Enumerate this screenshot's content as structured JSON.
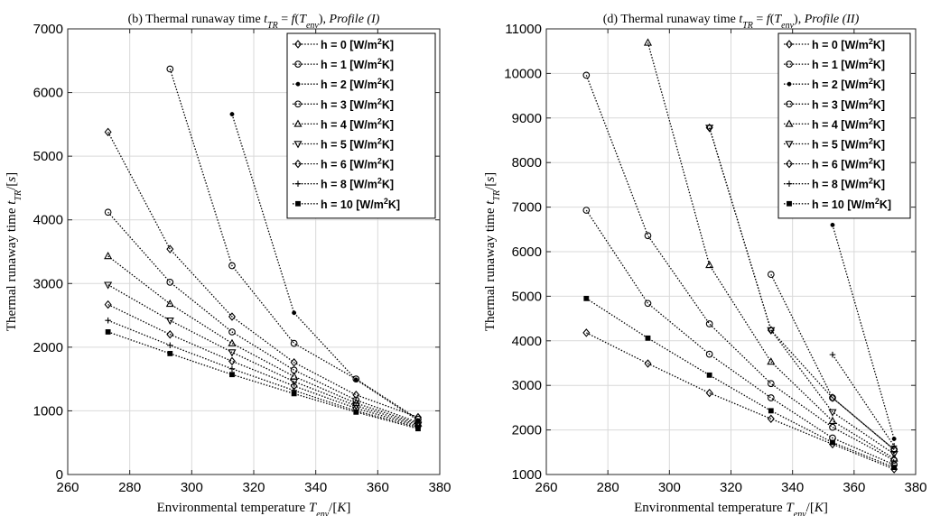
{
  "chart_data": [
    {
      "type": "line",
      "title": "(b) Thermal runaway time t_TR = f(T_env), Profile (I)",
      "xlabel": "Environmental temperature T_env/[K]",
      "ylabel": "Thermal runaway time t_TR/[s]",
      "xlim": [
        260,
        380
      ],
      "ylim": [
        0,
        7000
      ],
      "xticks": [
        260,
        280,
        300,
        320,
        340,
        360,
        380
      ],
      "yticks": [
        0,
        1000,
        2000,
        3000,
        4000,
        5000,
        6000,
        7000
      ],
      "grid": true,
      "legend_position": "top-right",
      "series": [
        {
          "name": "h = 0 [W/m^2K]",
          "marker": "diamond",
          "x": [
            273,
            293,
            313,
            333,
            353,
            373
          ],
          "y": [
            5380,
            3540,
            2480,
            1760,
            1250,
            900
          ]
        },
        {
          "name": "h = 1 [W/m^2K]",
          "marker": "circle",
          "x": [
            293,
            313,
            333,
            353,
            373
          ],
          "y": [
            6370,
            3280,
            2060,
            1500,
            870
          ]
        },
        {
          "name": "h = 2 [W/m^2K]",
          "marker": "dot",
          "x": [
            313,
            333,
            353,
            373
          ],
          "y": [
            5660,
            2540,
            1490,
            850
          ]
        },
        {
          "name": "h = 3 [W/m^2K]",
          "marker": "circle",
          "x": [
            273,
            293,
            313,
            333,
            353,
            373
          ],
          "y": [
            4120,
            3020,
            2240,
            1640,
            1170,
            820
          ]
        },
        {
          "name": "h = 4 [W/m^2K]",
          "marker": "triangle-up",
          "x": [
            273,
            293,
            313,
            333,
            353,
            373
          ],
          "y": [
            3430,
            2680,
            2060,
            1540,
            1120,
            800
          ]
        },
        {
          "name": "h = 5 [W/m^2K]",
          "marker": "triangle-down",
          "x": [
            273,
            293,
            313,
            333,
            353,
            373
          ],
          "y": [
            2980,
            2420,
            1920,
            1460,
            1080,
            780
          ]
        },
        {
          "name": "h = 6 [W/m^2K]",
          "marker": "diamond",
          "x": [
            273,
            293,
            313,
            333,
            353,
            373
          ],
          "y": [
            2670,
            2200,
            1780,
            1390,
            1040,
            760
          ]
        },
        {
          "name": "h = 8 [W/m^2K]",
          "marker": "plus",
          "x": [
            273,
            293,
            313,
            333,
            353,
            373
          ],
          "y": [
            2420,
            2030,
            1660,
            1320,
            1000,
            740
          ]
        },
        {
          "name": "h = 10 [W/m^2K]",
          "marker": "square",
          "x": [
            273,
            293,
            313,
            333,
            353,
            373
          ],
          "y": [
            2240,
            1900,
            1570,
            1270,
            980,
            720
          ]
        }
      ]
    },
    {
      "type": "line",
      "title": "(d) Thermal runaway time t_TR = f(T_env), Profile (II)",
      "xlabel": "Environmental temperature T_env/[K]",
      "ylabel": "Thermal runaway time t_TR/[s]",
      "xlim": [
        260,
        380
      ],
      "ylim": [
        1000,
        11000
      ],
      "xticks": [
        260,
        280,
        300,
        320,
        340,
        360,
        380
      ],
      "yticks": [
        1000,
        2000,
        3000,
        4000,
        5000,
        6000,
        7000,
        8000,
        9000,
        10000,
        11000
      ],
      "grid": true,
      "legend_position": "top-right",
      "series": [
        {
          "name": "h = 0 [W/m^2K]",
          "marker": "diamond",
          "x": [
            313,
            333,
            353,
            373
          ],
          "y": [
            8780,
            4240,
            2720,
            1560
          ]
        },
        {
          "name": "h = 1 [W/m^2K]",
          "marker": "circle",
          "x": [
            333,
            353,
            373
          ],
          "y": [
            5490,
            2720,
            1560
          ]
        },
        {
          "name": "h = 2 [W/m^2K]",
          "marker": "dot",
          "x": [
            353,
            373
          ],
          "y": [
            6600,
            1800
          ]
        },
        {
          "name": "h = 3 [W/m^2K]",
          "marker": "circle",
          "x": [
            273,
            293,
            313,
            333,
            353,
            373
          ],
          "y": [
            9960,
            6360,
            4380,
            3040,
            2060,
            1320
          ]
        },
        {
          "name": "h = 4 [W/m^2K]",
          "marker": "triangle-up",
          "x": [
            293,
            313,
            333,
            353,
            373
          ],
          "y": [
            10690,
            5700,
            3530,
            2200,
            1360
          ]
        },
        {
          "name": "h = 5 [W/m^2K]",
          "marker": "triangle-down",
          "x": [
            313,
            333,
            353,
            373
          ],
          "y": [
            8780,
            4240,
            2400,
            1460
          ]
        },
        {
          "name": "h = 6 [W/m^2K]",
          "marker": "diamond",
          "x": [
            273,
            293,
            313,
            333,
            353,
            373
          ],
          "y": [
            4180,
            3490,
            2830,
            2250,
            1680,
            1120
          ]
        },
        {
          "name": "h = 8 [W/m^2K]",
          "marker": "plus",
          "x": [
            353,
            373
          ],
          "y": [
            3690,
            1640
          ]
        },
        {
          "name": "h = 10 [W/m^2K]",
          "marker": "square",
          "x": [
            273,
            293,
            313,
            333,
            353,
            373
          ],
          "y": [
            4950,
            4060,
            3230,
            2430,
            1720,
            1160
          ]
        }
      ],
      "extra_series": [
        {
          "marker": "circle",
          "x": [
            273,
            293,
            313,
            333,
            353,
            373
          ],
          "y": [
            6930,
            4840,
            3700,
            2720,
            1820,
            1220
          ]
        }
      ]
    }
  ]
}
